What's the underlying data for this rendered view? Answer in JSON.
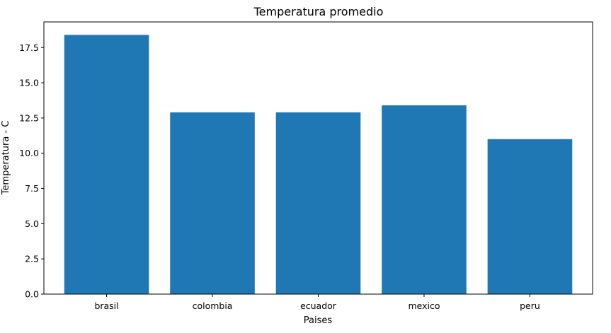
{
  "chart_data": {
    "type": "bar",
    "title": "Temperatura promedio",
    "xlabel": "Paises",
    "ylabel": "Temperatura - C",
    "categories": [
      "brasil",
      "colombia",
      "ecuador",
      "mexico",
      "peru"
    ],
    "values": [
      18.4,
      12.9,
      12.9,
      13.4,
      11.0
    ],
    "ylim": [
      0,
      19.32
    ],
    "yticks": [
      0.0,
      2.5,
      5.0,
      7.5,
      10.0,
      12.5,
      15.0,
      17.5
    ],
    "ytick_labels": [
      "0.0",
      "2.5",
      "5.0",
      "7.5",
      "10.0",
      "12.5",
      "15.0",
      "17.5"
    ],
    "grid": false,
    "bar_color": "#1f77b4"
  }
}
